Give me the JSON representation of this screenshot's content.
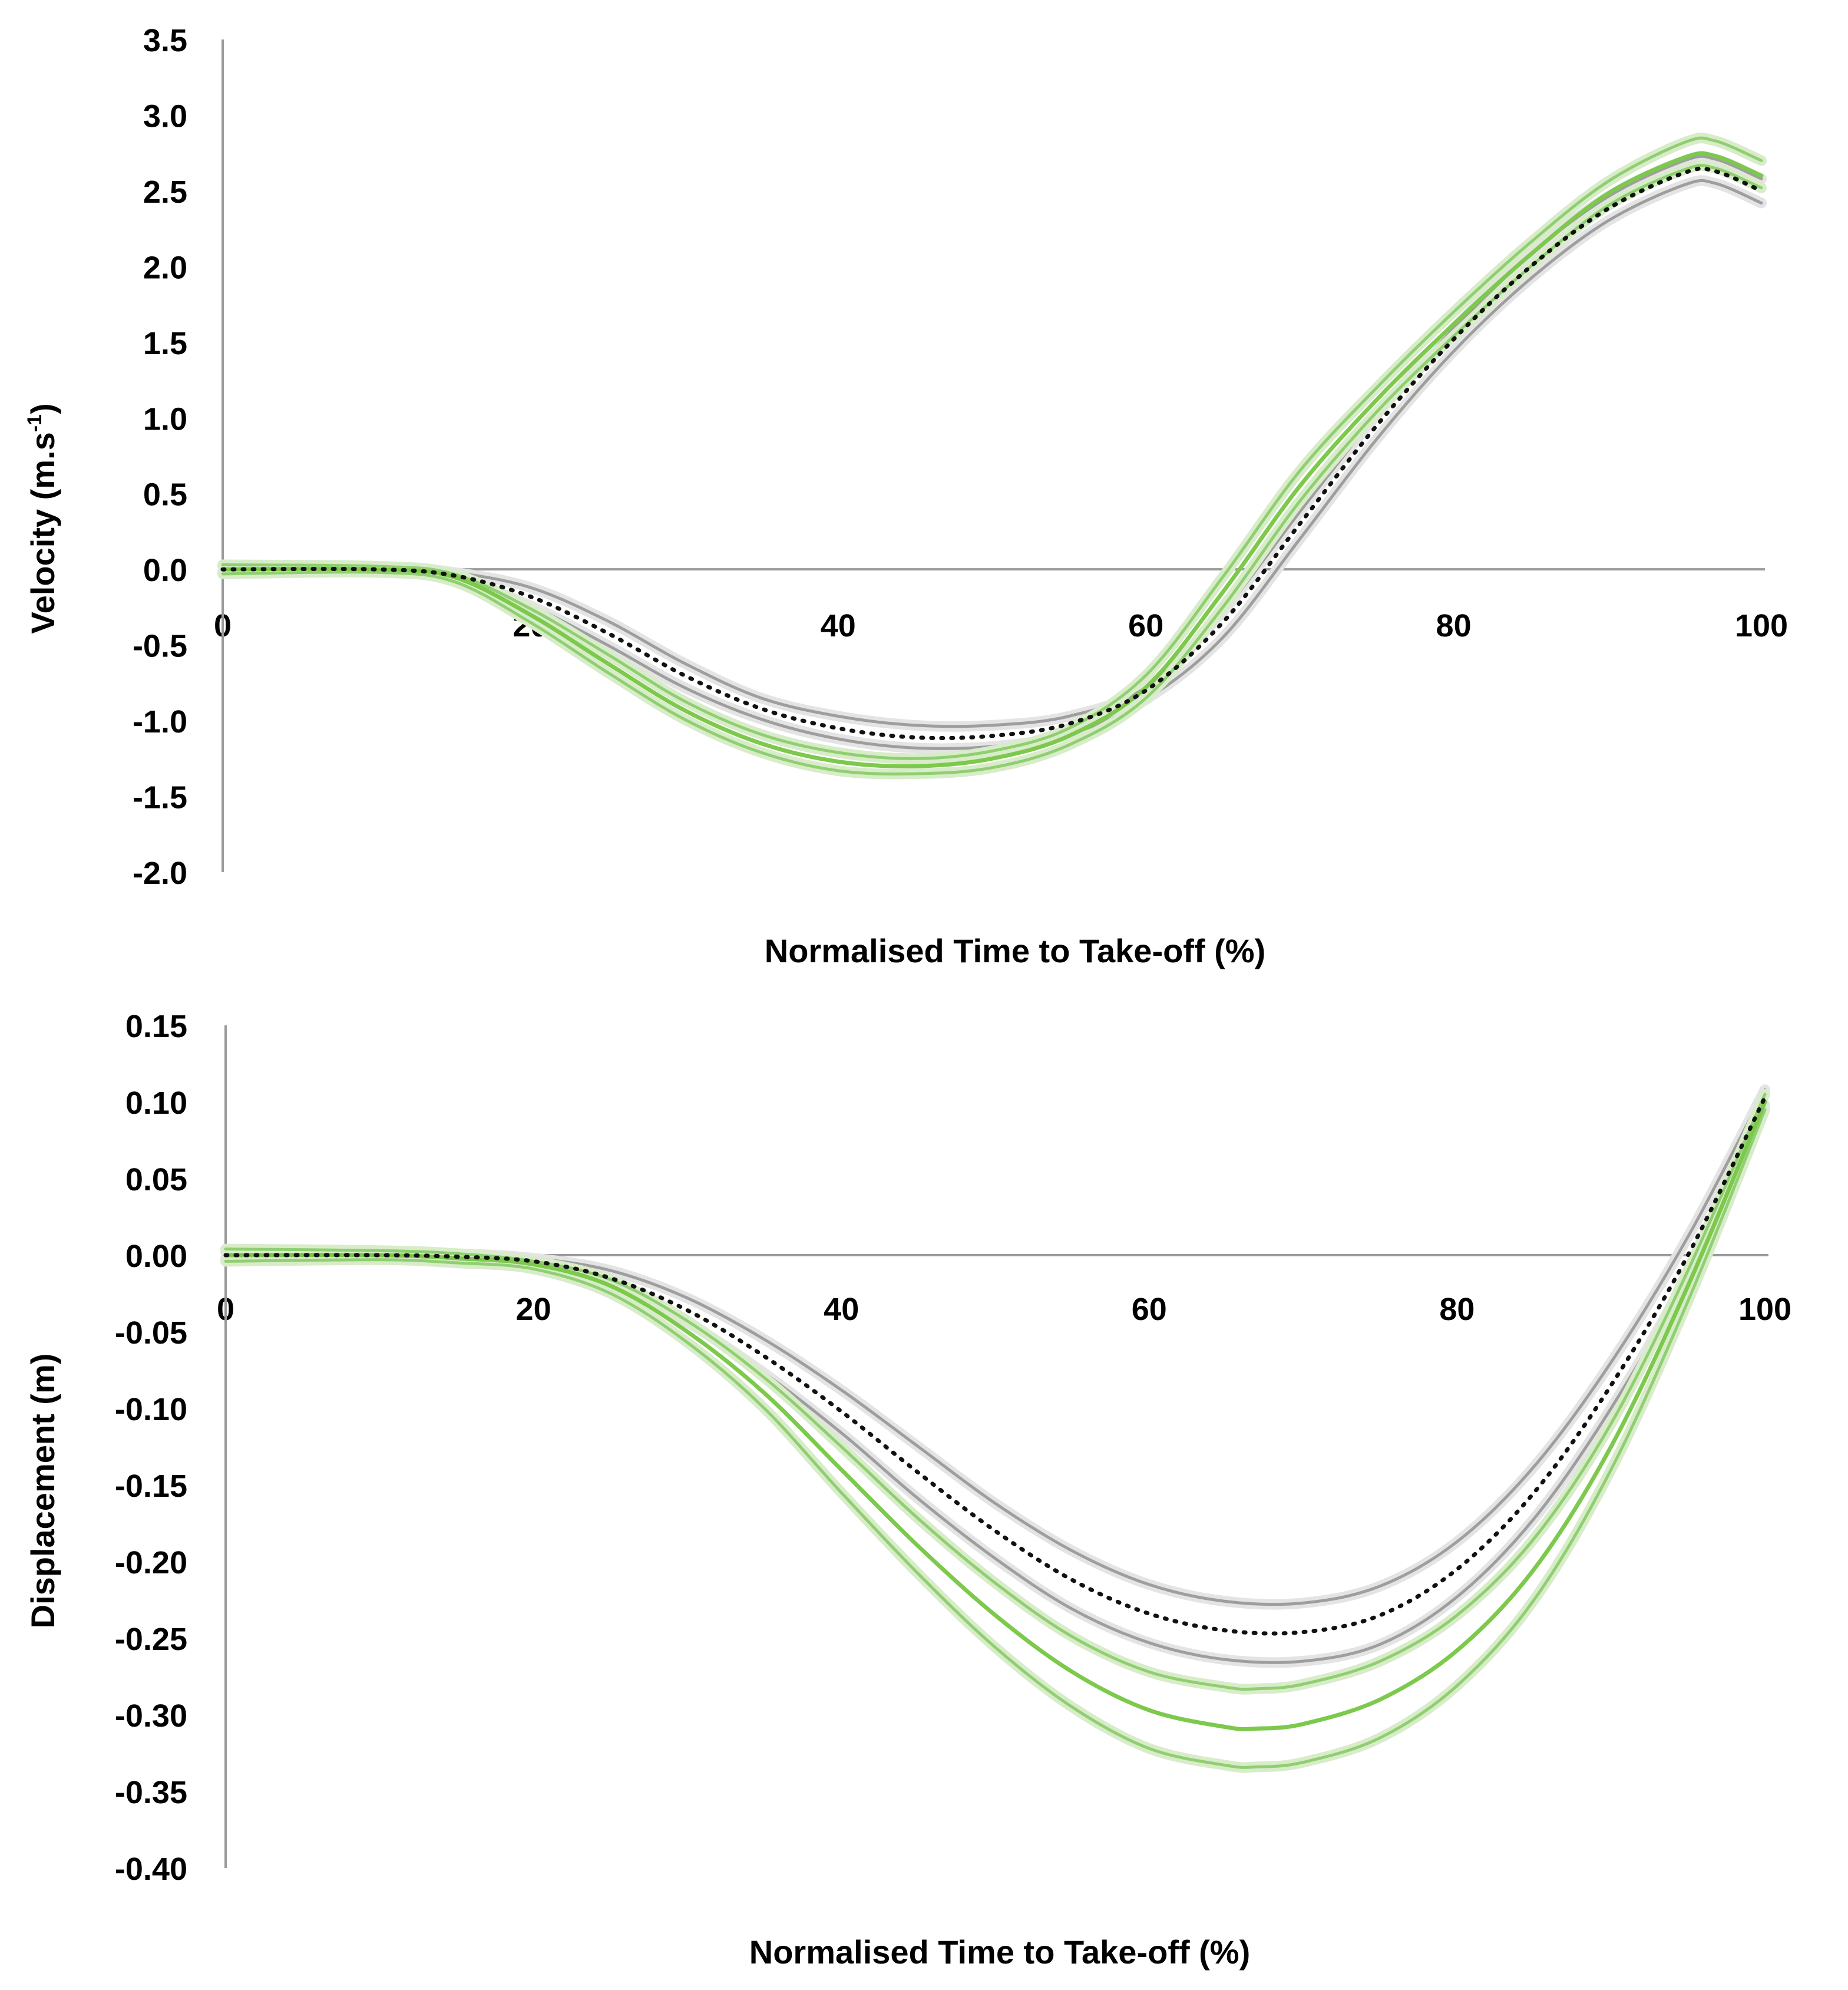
{
  "colors": {
    "green": "#7cc94c",
    "green_sd": "#8fcf71",
    "gray_sd": "#9e9e9e",
    "black": "#111111",
    "axis": "#9a9a9a"
  },
  "chart_data": [
    {
      "type": "line",
      "title": "",
      "xlabel": "Normalised Time to Take-off (%)",
      "ylabel_main": "Velocity (m.s",
      "ylabel_sup": "-1",
      "ylabel_end": ")",
      "xlim": [
        0,
        100
      ],
      "ylim": [
        -2.0,
        3.5
      ],
      "xticks": [
        0,
        20,
        40,
        60,
        80,
        100
      ],
      "xtick_labels": [
        "0",
        "20",
        "40",
        "60",
        "80",
        "100"
      ],
      "yticks": [
        3.5,
        3.0,
        2.5,
        2.0,
        1.5,
        1.0,
        0.5,
        0.0,
        -0.5,
        -1.0,
        -1.5,
        -2.0
      ],
      "ytick_labels": [
        "3.5",
        "3.0",
        "2.5",
        "2.0",
        "1.5",
        "1.0",
        "0.5",
        "0.0",
        "-0.5",
        "-1.0",
        "-1.5",
        "-2.0"
      ],
      "series": [
        {
          "name": "green-mean",
          "style": "green-solid",
          "x": [
            0,
            10,
            15,
            20,
            25,
            30,
            35,
            40,
            45,
            50,
            55,
            60,
            65,
            70,
            75,
            80,
            85,
            90,
            95,
            97,
            100
          ],
          "y": [
            0,
            0,
            -0.05,
            -0.3,
            -0.62,
            -0.93,
            -1.15,
            -1.27,
            -1.3,
            -1.25,
            -1.1,
            -0.78,
            -0.15,
            0.55,
            1.12,
            1.62,
            2.08,
            2.48,
            2.72,
            2.73,
            2.6
          ]
        },
        {
          "name": "green-upper-sd",
          "style": "green-sd",
          "x": [
            0,
            10,
            15,
            20,
            25,
            30,
            35,
            40,
            45,
            50,
            55,
            60,
            65,
            70,
            75,
            80,
            85,
            90,
            95,
            97,
            100
          ],
          "y": [
            0.03,
            0.02,
            -0.03,
            -0.26,
            -0.56,
            -0.87,
            -1.09,
            -1.21,
            -1.25,
            -1.2,
            -1.05,
            -0.7,
            -0.05,
            0.65,
            1.2,
            1.7,
            2.16,
            2.56,
            2.82,
            2.83,
            2.7
          ]
        },
        {
          "name": "green-lower-sd",
          "style": "green-sd",
          "x": [
            0,
            10,
            15,
            20,
            25,
            30,
            35,
            40,
            45,
            50,
            55,
            60,
            65,
            70,
            75,
            80,
            85,
            90,
            95,
            97,
            100
          ],
          "y": [
            -0.03,
            -0.02,
            -0.08,
            -0.35,
            -0.68,
            -0.99,
            -1.21,
            -1.33,
            -1.35,
            -1.31,
            -1.16,
            -0.85,
            -0.25,
            0.45,
            1.04,
            1.54,
            2.0,
            2.4,
            2.64,
            2.65,
            2.52
          ]
        },
        {
          "name": "black-mean",
          "style": "black-dotted",
          "x": [
            0,
            10,
            15,
            20,
            25,
            30,
            35,
            40,
            45,
            50,
            55,
            60,
            65,
            70,
            75,
            80,
            85,
            90,
            95,
            97,
            100
          ],
          "y": [
            0,
            0,
            -0.04,
            -0.18,
            -0.42,
            -0.7,
            -0.92,
            -1.05,
            -1.11,
            -1.1,
            -1.02,
            -0.8,
            -0.35,
            0.3,
            0.95,
            1.52,
            2.0,
            2.38,
            2.62,
            2.63,
            2.5
          ]
        },
        {
          "name": "gray-upper-sd",
          "style": "gray-sd",
          "x": [
            0,
            10,
            15,
            20,
            25,
            30,
            35,
            40,
            45,
            50,
            55,
            60,
            65,
            70,
            75,
            80,
            85,
            90,
            95,
            97,
            100
          ],
          "y": [
            0.02,
            0.02,
            -0.02,
            -0.12,
            -0.34,
            -0.62,
            -0.85,
            -0.97,
            -1.03,
            -1.03,
            -0.97,
            -0.78,
            -0.28,
            0.38,
            1.02,
            1.59,
            2.08,
            2.46,
            2.7,
            2.71,
            2.58
          ]
        },
        {
          "name": "gray-lower-sd",
          "style": "gray-sd",
          "x": [
            0,
            10,
            15,
            20,
            25,
            30,
            35,
            40,
            45,
            50,
            55,
            60,
            65,
            70,
            75,
            80,
            85,
            90,
            95,
            97,
            100
          ],
          "y": [
            -0.02,
            -0.02,
            -0.06,
            -0.24,
            -0.5,
            -0.78,
            -0.99,
            -1.12,
            -1.18,
            -1.17,
            -1.09,
            -0.86,
            -0.45,
            0.2,
            0.86,
            1.44,
            1.92,
            2.3,
            2.54,
            2.55,
            2.42
          ]
        }
      ]
    },
    {
      "type": "line",
      "title": "",
      "xlabel": "Normalised Time to Take-off (%)",
      "ylabel_main": "Displacement (m)",
      "xlim": [
        0,
        100
      ],
      "ylim": [
        -0.4,
        0.15
      ],
      "xticks": [
        0,
        20,
        40,
        60,
        80,
        100
      ],
      "xtick_labels": [
        "0",
        "20",
        "40",
        "60",
        "80",
        "100"
      ],
      "yticks": [
        0.15,
        0.1,
        0.05,
        0.0,
        -0.05,
        -0.1,
        -0.15,
        -0.2,
        -0.25,
        -0.3,
        -0.35,
        -0.4
      ],
      "ytick_labels": [
        "0.15",
        "0.10",
        "0.05",
        "0.00",
        "-0.05",
        "-0.10",
        "-0.15",
        "-0.20",
        "-0.25",
        "-0.30",
        "-0.35",
        "-0.40"
      ],
      "series": [
        {
          "name": "green-mean",
          "style": "green-solid",
          "x": [
            0,
            10,
            15,
            20,
            25,
            30,
            35,
            40,
            45,
            50,
            55,
            60,
            65,
            67,
            70,
            75,
            80,
            85,
            90,
            95,
            100
          ],
          "y": [
            0,
            0,
            -0.002,
            -0.006,
            -0.02,
            -0.05,
            -0.09,
            -0.14,
            -0.19,
            -0.235,
            -0.272,
            -0.297,
            -0.308,
            -0.309,
            -0.306,
            -0.29,
            -0.258,
            -0.205,
            -0.125,
            -0.02,
            0.1
          ]
        },
        {
          "name": "green-upper-sd",
          "style": "green-sd",
          "x": [
            0,
            10,
            15,
            20,
            25,
            30,
            35,
            40,
            45,
            50,
            55,
            60,
            65,
            67,
            70,
            75,
            80,
            85,
            90,
            95,
            100
          ],
          "y": [
            0.004,
            0.003,
            0.001,
            -0.004,
            -0.016,
            -0.043,
            -0.08,
            -0.125,
            -0.172,
            -0.214,
            -0.249,
            -0.272,
            -0.282,
            -0.283,
            -0.28,
            -0.265,
            -0.235,
            -0.185,
            -0.11,
            -0.01,
            0.105
          ]
        },
        {
          "name": "green-lower-sd",
          "style": "green-sd",
          "x": [
            0,
            10,
            15,
            20,
            25,
            30,
            35,
            40,
            45,
            50,
            55,
            60,
            65,
            67,
            70,
            75,
            80,
            85,
            90,
            95,
            100
          ],
          "y": [
            -0.004,
            -0.003,
            -0.005,
            -0.009,
            -0.025,
            -0.057,
            -0.1,
            -0.155,
            -0.208,
            -0.256,
            -0.295,
            -0.322,
            -0.333,
            -0.334,
            -0.331,
            -0.315,
            -0.281,
            -0.225,
            -0.14,
            -0.03,
            0.095
          ]
        },
        {
          "name": "black-mean",
          "style": "black-dotted",
          "x": [
            0,
            10,
            15,
            20,
            25,
            30,
            35,
            40,
            45,
            50,
            55,
            60,
            65,
            70,
            75,
            80,
            85,
            90,
            95,
            100
          ],
          "y": [
            0,
            0,
            -0.001,
            -0.004,
            -0.015,
            -0.036,
            -0.066,
            -0.102,
            -0.142,
            -0.18,
            -0.212,
            -0.234,
            -0.245,
            -0.246,
            -0.235,
            -0.205,
            -0.155,
            -0.085,
            0.0,
            0.103
          ]
        },
        {
          "name": "gray-upper-sd",
          "style": "gray-sd",
          "x": [
            0,
            10,
            15,
            20,
            25,
            30,
            35,
            40,
            45,
            50,
            55,
            60,
            65,
            70,
            75,
            80,
            85,
            90,
            95,
            100
          ],
          "y": [
            0.002,
            0.002,
            0.001,
            -0.002,
            -0.01,
            -0.028,
            -0.055,
            -0.088,
            -0.125,
            -0.162,
            -0.193,
            -0.215,
            -0.226,
            -0.227,
            -0.216,
            -0.187,
            -0.138,
            -0.07,
            0.012,
            0.108
          ]
        },
        {
          "name": "gray-lower-sd",
          "style": "gray-sd",
          "x": [
            0,
            10,
            15,
            20,
            25,
            30,
            35,
            40,
            45,
            50,
            55,
            60,
            65,
            70,
            75,
            80,
            85,
            90,
            95,
            100
          ],
          "y": [
            -0.002,
            -0.002,
            -0.003,
            -0.006,
            -0.02,
            -0.044,
            -0.077,
            -0.116,
            -0.159,
            -0.198,
            -0.231,
            -0.253,
            -0.264,
            -0.265,
            -0.254,
            -0.223,
            -0.172,
            -0.1,
            -0.012,
            0.098
          ]
        }
      ]
    }
  ]
}
